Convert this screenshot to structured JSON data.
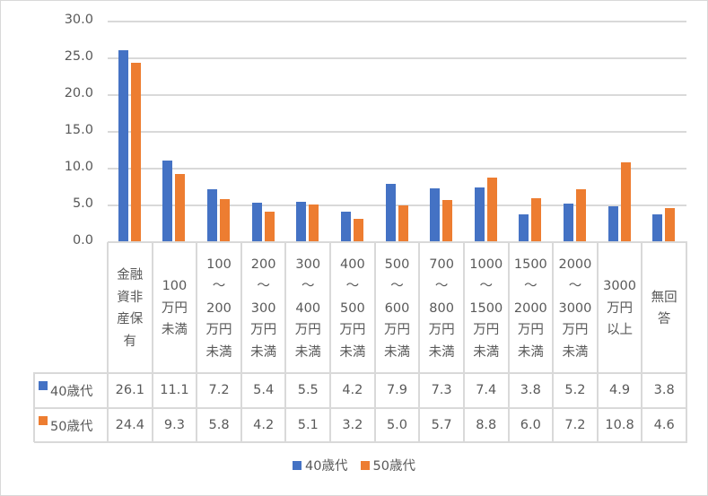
{
  "chart_data": {
    "type": "bar",
    "title": "",
    "xlabel": "",
    "ylabel": "",
    "ylim": [
      0,
      30
    ],
    "yticks": [
      "0.0",
      "5.0",
      "10.0",
      "15.0",
      "20.0",
      "25.0",
      "30.0"
    ],
    "grid": true,
    "legend_position": "bottom",
    "data_table": true,
    "categories": [
      "金融資産非保有",
      "100万円未満",
      "100～200万円未満",
      "200～300万円未満",
      "300～400万円未満",
      "400～500万円未満",
      "500～600万円未満",
      "700～800万円未満",
      "1000～1500万円未満",
      "1500～2000万円未満",
      "2000～3000万円未満",
      "3000万円以上",
      "無回答"
    ],
    "category_display": [
      "金融\n資非\n産保\n有",
      "100\n万円\n未満",
      "100\n～\n200\n万円\n未満",
      "200\n～\n300\n万円\n未満",
      "300\n～\n400\n万円\n未満",
      "400\n～\n500\n万円\n未満",
      "500\n～\n600\n万円\n未満",
      "700\n～\n800\n万円\n未満",
      "1000\n～\n1500\n万円\n未満",
      "1500\n～\n2000\n万円\n未満",
      "2000\n～\n3000\n万円\n未満",
      "3000\n万円\n以上",
      "無回\n答"
    ],
    "series": [
      {
        "name": "40歳代",
        "color": "#4472c4",
        "values": [
          26.1,
          11.1,
          7.2,
          5.4,
          5.5,
          4.2,
          7.9,
          7.3,
          7.4,
          3.8,
          5.2,
          4.9,
          3.8
        ],
        "labels": [
          "26.1",
          "11.1",
          "7.2",
          "5.4",
          "5.5",
          "4.2",
          "7.9",
          "7.3",
          "7.4",
          "3.8",
          "5.2",
          "4.9",
          "3.8"
        ]
      },
      {
        "name": "50歳代",
        "color": "#ed7d31",
        "values": [
          24.4,
          9.3,
          5.8,
          4.2,
          5.1,
          3.2,
          5.0,
          5.7,
          8.8,
          6.0,
          7.2,
          10.8,
          4.6
        ],
        "labels": [
          "24.4",
          "9.3",
          "5.8",
          "4.2",
          "5.1",
          "3.2",
          "5.0",
          "5.7",
          "8.8",
          "6.0",
          "7.2",
          "10.8",
          "4.6"
        ]
      }
    ]
  }
}
